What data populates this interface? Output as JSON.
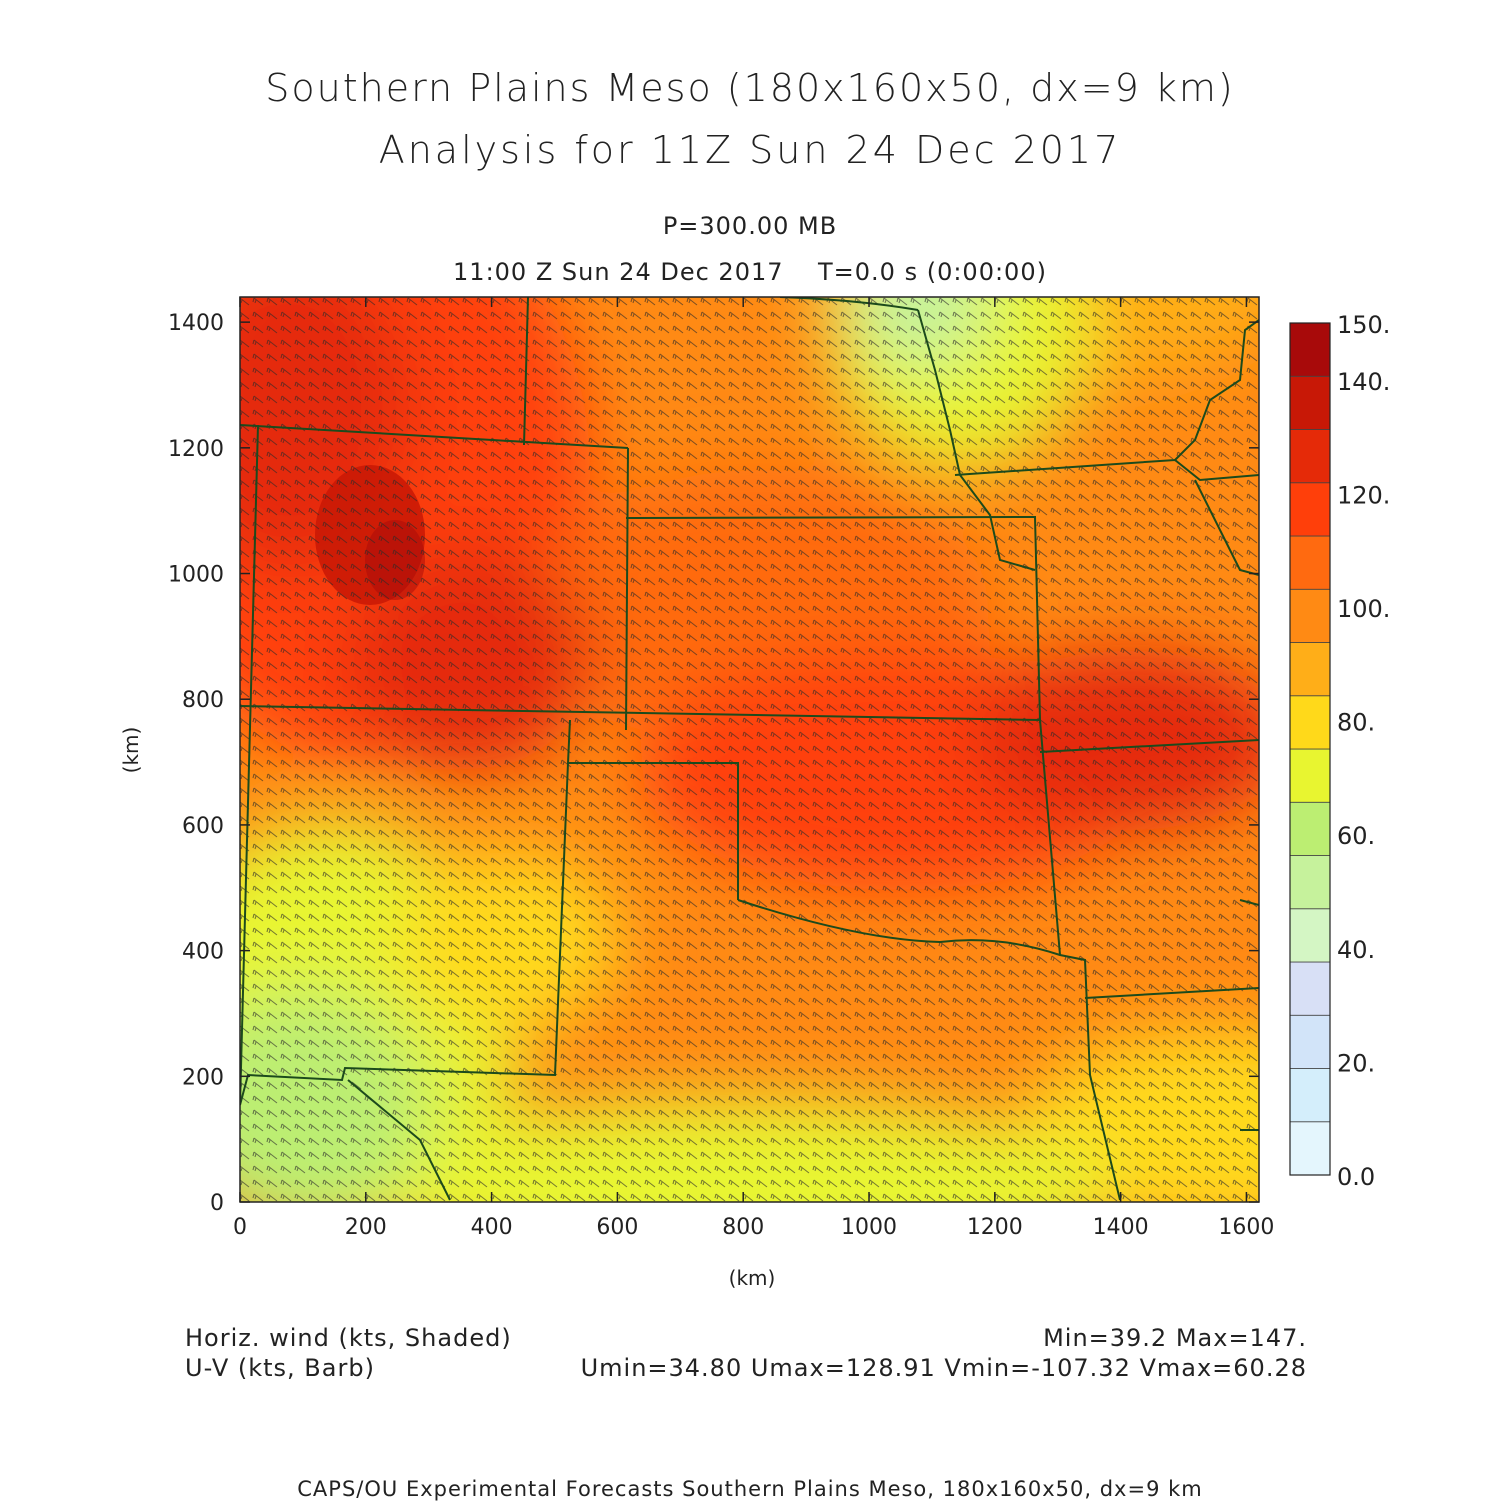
{
  "header": {
    "title": "Southern Plains Meso (180x160x50, dx=9 km)",
    "subtitle": "Analysis for 11Z Sun 24 Dec 2017",
    "level": "P=300.00 MB",
    "valid_time": "11:00 Z Sun 24 Dec 2017    T=0.0 s (0:00:00)"
  },
  "map": {
    "x_axis": {
      "label": "(km)",
      "ticks": [
        0,
        200,
        400,
        600,
        800,
        1000,
        1200,
        1400,
        1600
      ],
      "range": [
        0,
        1620
      ]
    },
    "y_axis": {
      "label": "(km)",
      "ticks": [
        0,
        200,
        400,
        600,
        800,
        1000,
        1200,
        1400
      ],
      "range": [
        0,
        1440
      ]
    },
    "field": "horizontal wind speed (kts), shaded",
    "vectors": "U-V wind barbs",
    "border_color": "#1c4a1c"
  },
  "colorbar": {
    "labels": [
      "150.",
      "140.",
      "120.",
      "100.",
      "80.",
      "60.",
      "40.",
      "20.",
      "0.0"
    ],
    "levels": [
      0,
      10,
      20,
      30,
      40,
      50,
      60,
      70,
      80,
      90,
      100,
      110,
      120,
      130,
      140,
      150
    ],
    "colors": [
      "#e4f6fd",
      "#d4eefb",
      "#d2e4f9",
      "#d8e0f6",
      "#d4f6c4",
      "#c6f29c",
      "#bcee72",
      "#e8f530",
      "#ffd91a",
      "#ffae18",
      "#ff8a14",
      "#ff6a10",
      "#ff3f0a",
      "#e52a08",
      "#c81806",
      "#a80a0a"
    ]
  },
  "footer": {
    "left1": "Horiz. wind (kts, Shaded)",
    "left2": "U-V (kts, Barb)",
    "right1": "Min=39.2 Max=147.",
    "right2": "Umin=34.80 Umax=128.91 Vmin=-107.32 Vmax=60.28",
    "credit": "CAPS/OU Experimental Forecasts  Southern Plains Meso, 180x160x50, dx=9 km"
  }
}
